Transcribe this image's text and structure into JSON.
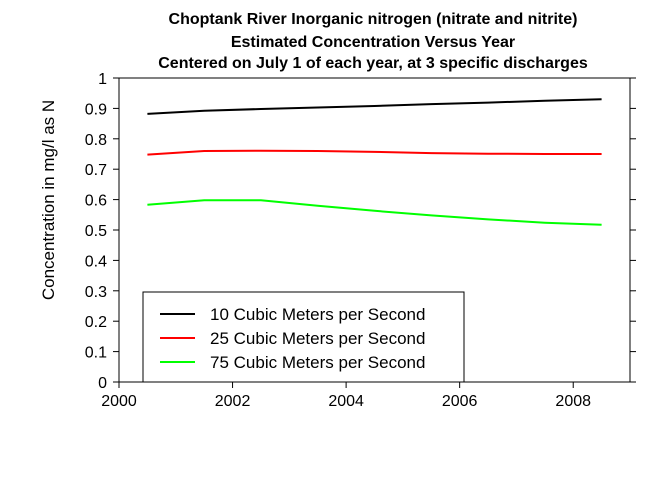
{
  "chart_data": {
    "type": "line",
    "title_lines": [
      "Choptank River    Inorganic nitrogen (nitrate and nitrite)",
      "Estimated Concentration Versus Year",
      "Centered on July 1 of each year, at 3 specific discharges"
    ],
    "xlabel": "",
    "ylabel": "Concentration in mg/l as N",
    "xlim": [
      2000,
      2009
    ],
    "ylim": [
      0,
      1
    ],
    "xticks": [
      2000,
      2002,
      2004,
      2006,
      2008
    ],
    "xtick_labels": [
      "2000",
      "2002",
      "2004",
      "2006",
      "2008"
    ],
    "yticks": [
      0,
      0.1,
      0.2,
      0.3,
      0.4,
      0.5,
      0.6,
      0.7,
      0.8,
      0.9,
      1
    ],
    "ytick_labels": [
      "0",
      "0.1",
      "0.2",
      "0.3",
      "0.4",
      "0.5",
      "0.6",
      "0.7",
      "0.8",
      "0.9",
      "1"
    ],
    "grid": false,
    "legend_position": "bottom-left",
    "series": [
      {
        "name": "10 Cubic Meters per Second",
        "color": "#000000",
        "x": [
          2000.5,
          2001.5,
          2002.5,
          2003.5,
          2004.5,
          2005.5,
          2006.5,
          2007.5,
          2008.5
        ],
        "y": [
          0.882,
          0.892,
          0.898,
          0.903,
          0.908,
          0.914,
          0.919,
          0.925,
          0.93
        ]
      },
      {
        "name": "25 Cubic Meters per Second",
        "color": "#ff0000",
        "x": [
          2000.5,
          2001.5,
          2002.5,
          2003.5,
          2004.5,
          2005.5,
          2006.5,
          2007.5,
          2008.5
        ],
        "y": [
          0.748,
          0.76,
          0.761,
          0.76,
          0.757,
          0.753,
          0.751,
          0.75,
          0.75
        ]
      },
      {
        "name": "75 Cubic Meters per Second",
        "color": "#00ff00",
        "x": [
          2000.5,
          2001.5,
          2002.5,
          2003.5,
          2004.5,
          2005.5,
          2006.5,
          2007.5,
          2008.5
        ],
        "y": [
          0.583,
          0.598,
          0.598,
          0.58,
          0.563,
          0.548,
          0.535,
          0.524,
          0.517
        ]
      }
    ]
  }
}
